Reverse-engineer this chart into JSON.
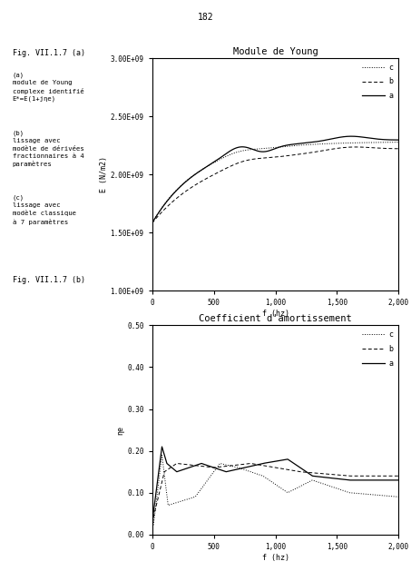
{
  "page_number": "182",
  "fig_label_a": "Fig. VII.1.7 (a)",
  "fig_label_b": "Fig. VII.1.7 (b)",
  "chart1_title": "Module de Young",
  "chart1_xlabel": "f (hz)",
  "chart1_ylabel": "E (N/m2)",
  "chart1_ylim": [
    1000000000.0,
    3000000000.0
  ],
  "chart1_ytick_labels": [
    "1.00E+09",
    "1.50E+09",
    "2.00E+09",
    "2.50E+09",
    "3.00E+09"
  ],
  "chart1_ytick_vals": [
    1000000000.0,
    1500000000.0,
    2000000000.0,
    2500000000.0,
    3000000000.0
  ],
  "chart1_xlim": [
    0,
    2000
  ],
  "chart1_xtick_labels": [
    "0",
    "500",
    "1,000",
    "1,500",
    "2,000"
  ],
  "chart1_xtick_vals": [
    0,
    500,
    1000,
    1500,
    2000
  ],
  "chart2_title": "Coefficient d'amortissement",
  "chart2_xlabel": "f (hz)",
  "chart2_ylabel": "ηe",
  "chart2_ylim": [
    0.0,
    0.5
  ],
  "chart2_ytick_labels": [
    "0.00",
    "0.10",
    "0.20",
    "0.30",
    "0.40",
    "0.50"
  ],
  "chart2_ytick_vals": [
    0.0,
    0.1,
    0.2,
    0.3,
    0.4,
    0.5
  ],
  "chart2_xlim": [
    0,
    2000
  ],
  "chart2_xtick_labels": [
    "0",
    "500",
    "1,000",
    "1,500",
    "2,000"
  ],
  "chart2_xtick_vals": [
    0,
    500,
    1000,
    1500,
    2000
  ],
  "background": "#ffffff",
  "line_color": "#000000",
  "left_text_1": "(a)\nmodule de Young\ncomplexe identifié\nE*=E(1+jηe)",
  "left_text_2": "(b)\nlissage avec\nmodèle de dérivées\nfractionnaires à 4\nparamètres",
  "left_text_3": "(c)\nlissage avec\nmodèle classique\nà 7 paramètres"
}
